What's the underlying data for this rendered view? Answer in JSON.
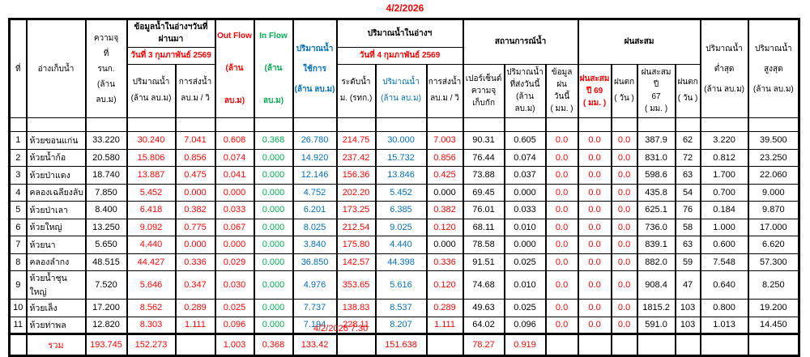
{
  "title": "4/2/2026",
  "footer": "4/2/2026 7:30",
  "colors": {
    "red": "#ff0000",
    "green": "#00b050",
    "blue": "#0070c0",
    "black": "#000000"
  },
  "header": {
    "no": "ที่",
    "reservoir": "อ่างเก็บน้ำ",
    "capacity": "ความจุ\nที่\nรนก.\n(ล้าน ลบ.ม)",
    "group_prev": "ข้อมูลน้ำในอ่างฯวันที่ผ่านมา",
    "date_prev": "วันที่ 3 กุมภาพันธ์ 2569",
    "volume": "ปริมาณน้ำ\n(ล้าน ลบ.ม)",
    "discharge": "การส่งน้ำ\nลบ.ม / วิ",
    "out_flow": "Out Flow\n(ล้าน ลบ.ม)",
    "in_flow": "In Flow\n(ล้าน ลบ.ม)",
    "usable": "ปริมาณน้ำ\nใช้การ\n(ล้าน ลบ.ม)",
    "group_today": "ปริมาณน้ำในอ่างฯ",
    "date_today": "วันที่ 4 กุมภาพันธ์ 2569",
    "level": "ระดับน้ำ\nม. (รทก.)",
    "group_status": "สถานการณ์น้ำ",
    "percent": "เปอร์เซ็นต์\nความจุ\nเก็บกัก",
    "sent_today": "ปริมาณน้ำ\nที่ส่งวันนี้\n(ล้าน ลบ.ม)",
    "rain_today": "ข้อมูลฝน\nวันนี้\n( มม. )",
    "group_rain": "ฝนสะสม",
    "rain_69": "ฝนสะสม\nปี 69\n( มม. )",
    "rain_days": "ฝนตก\n( วัน )",
    "rain_67": "ฝนสะสม ปี\n67\n( มม. )",
    "vol_min": "ปริมาณน้ำ\nต่ำสุด\n(ล้าน ลบ.ม)",
    "vol_max": "ปริมาณน้ำ\nสูงสุด\n(ล้าน ลบ.ม)"
  },
  "columns": {
    "keys": [
      "capacity_rnk",
      "volume_feb3",
      "discharge_feb3",
      "out_flow",
      "in_flow",
      "usable_volume",
      "water_level_feb4",
      "volume_feb4",
      "discharge_feb4",
      "percent_capacity",
      "sent_today",
      "rain_today",
      "rain_accum_y69",
      "rain_days_y69",
      "rain_accum_y67",
      "rain_days_y67",
      "volume_min",
      "volume_max"
    ],
    "color": [
      "black",
      "red",
      "red",
      "red",
      "green",
      "blue",
      "red",
      "blue",
      "red0",
      "black",
      "black",
      "red",
      "red",
      "red",
      "black",
      "black",
      "black",
      "black"
    ]
  },
  "rows": [
    {
      "no": "1",
      "name": "ห้วยขอนแก่น",
      "values": [
        "33.220",
        "30.240",
        "7.041",
        "0.608",
        "0.368",
        "26.780",
        "214.75",
        "30.000",
        "7.003",
        "90.31",
        "0.605",
        "0.0",
        "0.0",
        "0.0",
        "387.9",
        "62",
        "3.220",
        "39.500"
      ]
    },
    {
      "no": "2",
      "name": "ห้วยน้ำก้อ",
      "values": [
        "20.580",
        "15.806",
        "0.856",
        "0.074",
        "0.000",
        "14.920",
        "237.42",
        "15.732",
        "0.856",
        "76.44",
        "0.074",
        "0.0",
        "0.0",
        "0.0",
        "831.0",
        "72",
        "0.812",
        "23.250"
      ]
    },
    {
      "no": "3",
      "name": "ห้วยป่าแดง",
      "values": [
        "18.740",
        "13.887",
        "0.475",
        "0.041",
        "0.000",
        "12.146",
        "156.36",
        "13.846",
        "0.425",
        "73.88",
        "0.037",
        "0.0",
        "0.0",
        "0.0",
        "598.6",
        "63",
        "1.700",
        "22.060"
      ]
    },
    {
      "no": "4",
      "name": "คลองเฉลียงลับ",
      "values": [
        "7.850",
        "5.452",
        "0.000",
        "0.000",
        "0.000",
        "4.752",
        "202.20",
        "5.452",
        "0.000",
        "69.45",
        "0.000",
        "0.0",
        "0.0",
        "0.0",
        "435.8",
        "54",
        "0.700",
        "9.000"
      ]
    },
    {
      "no": "5",
      "name": "ห้วยป่าเลา",
      "values": [
        "8.400",
        "6.418",
        "0.382",
        "0.033",
        "0.000",
        "6.201",
        "173.25",
        "6.385",
        "0.382",
        "76.01",
        "0.033",
        "0.0",
        "0.0",
        "0.0",
        "625.1",
        "76",
        "0.184",
        "9.870"
      ]
    },
    {
      "no": "6",
      "name": "ห้วยใหญ่",
      "values": [
        "13.250",
        "9.092",
        "0.775",
        "0.067",
        "0.000",
        "8.025",
        "212.54",
        "9.025",
        "0.120",
        "68.11",
        "0.010",
        "0.0",
        "0.0",
        "0.0",
        "736.0",
        "58",
        "1.000",
        "17.000"
      ]
    },
    {
      "no": "7",
      "name": "ห้วยนา",
      "values": [
        "5.650",
        "4.440",
        "0.000",
        "0.000",
        "0.000",
        "3.840",
        "175.80",
        "4.440",
        "0.000",
        "78.58",
        "0.000",
        "0.0",
        "0.0",
        "0.0",
        "839.1",
        "63",
        "0.600",
        "6.620"
      ]
    },
    {
      "no": "8",
      "name": "คลองลำกง",
      "values": [
        "48.515",
        "44.427",
        "0.336",
        "0.029",
        "0.000",
        "36.850",
        "142.57",
        "44.398",
        "0.336",
        "91.51",
        "0.025",
        "0.0",
        "0.0",
        "0.0",
        "882.0",
        "59",
        "7.548",
        "57.300"
      ]
    },
    {
      "no": "9",
      "name": "ห้วยน้ำชุนใหญ่",
      "values": [
        "7.520",
        "5.646",
        "0.347",
        "0.030",
        "0.000",
        "4.976",
        "353.65",
        "5.616",
        "0.120",
        "74.68",
        "0.010",
        "0.0",
        "0.0",
        "0.0",
        "908.4",
        "47",
        "0.640",
        "8.250"
      ]
    },
    {
      "no": "10",
      "name": "ห้วยเล็ง",
      "values": [
        "17.200",
        "8.562",
        "0.289",
        "0.025",
        "0.000",
        "7.737",
        "138.83",
        "8.537",
        "0.289",
        "49.63",
        "0.025",
        "0.0",
        "0.0",
        "0.0",
        "1815.2",
        "103",
        "0.800",
        "19.200"
      ]
    },
    {
      "no": "11",
      "name": "ห้วยท่าพล",
      "values": [
        "12.820",
        "8.303",
        "1.111",
        "0.096",
        "0.000",
        "7.194",
        "228.11",
        "8.207",
        "1.111",
        "64.02",
        "0.096",
        "0.0",
        "0.0",
        "0.0",
        "591.0",
        "103",
        "1.013",
        "14.450"
      ]
    }
  ],
  "total": {
    "label": "รวม",
    "values": [
      "193.745",
      "152.273",
      "",
      "1.003",
      "0.368",
      "133.42",
      "",
      "151.638",
      "",
      "78.27",
      "0.919",
      "",
      "",
      "",
      "",
      "",
      "",
      ""
    ]
  }
}
